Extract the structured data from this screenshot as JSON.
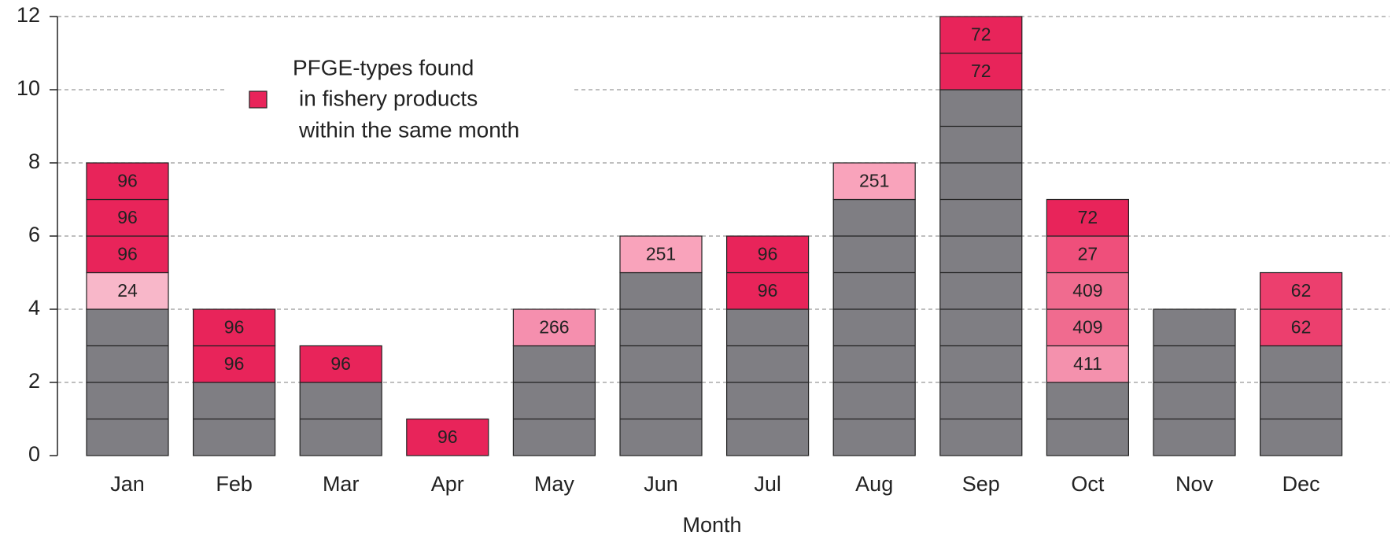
{
  "chart_data": {
    "type": "stacked-blocks",
    "xlabel": "Month",
    "categories": [
      "Jan",
      "Feb",
      "Mar",
      "Apr",
      "May",
      "Jun",
      "Jul",
      "Aug",
      "Sep",
      "Oct",
      "Nov",
      "Dec"
    ],
    "series": [
      {
        "color": "#7f7e83",
        "values": [
          4,
          2,
          2,
          0,
          3,
          5,
          4,
          7,
          10,
          2,
          4,
          3
        ]
      }
    ],
    "blocks": [
      [
        {
          "label": "24",
          "value": 1,
          "color": "#f8b7c9"
        },
        {
          "label": "96",
          "value": 1,
          "color": "#e8245a"
        },
        {
          "label": "96",
          "value": 1,
          "color": "#e8245a"
        },
        {
          "label": "96",
          "value": 1,
          "color": "#e8245a"
        }
      ],
      [
        {
          "label": "96",
          "value": 1,
          "color": "#e8245a"
        },
        {
          "label": "96",
          "value": 1,
          "color": "#e8245a"
        }
      ],
      [
        {
          "label": "96",
          "value": 1,
          "color": "#e8245a"
        }
      ],
      [
        {
          "label": "96",
          "value": 1,
          "color": "#e8245a"
        }
      ],
      [
        {
          "label": "266",
          "value": 1,
          "color": "#f58fae"
        }
      ],
      [
        {
          "label": "251",
          "value": 1,
          "color": "#f9a3bb"
        }
      ],
      [
        {
          "label": "96",
          "value": 1,
          "color": "#e8245a"
        },
        {
          "label": "96",
          "value": 1,
          "color": "#e8245a"
        }
      ],
      [
        {
          "label": "251",
          "value": 1,
          "color": "#f9a3bb"
        }
      ],
      [
        {
          "label": "72",
          "value": 1,
          "color": "#e8245a"
        },
        {
          "label": "72",
          "value": 1,
          "color": "#e8245a"
        }
      ],
      [
        {
          "label": "411",
          "value": 1,
          "color": "#f491ad"
        },
        {
          "label": "409",
          "value": 1,
          "color": "#f06b8f"
        },
        {
          "label": "409",
          "value": 1,
          "color": "#f06b8f"
        },
        {
          "label": "27",
          "value": 1,
          "color": "#ef4f7b"
        },
        {
          "label": "72",
          "value": 1,
          "color": "#e8245a"
        }
      ],
      [],
      [
        {
          "label": "62",
          "value": 1,
          "color": "#ec3f6e"
        },
        {
          "label": "62",
          "value": 1,
          "color": "#ec3f6e"
        }
      ]
    ],
    "legend": {
      "label": [
        "PFGE-types found",
        "in fishery products",
        "within the same month"
      ],
      "color": "#e8245a"
    },
    "ylim": [
      0,
      12
    ],
    "yticks": [
      0,
      2,
      4,
      6,
      8,
      10,
      12
    ],
    "grid": true
  }
}
